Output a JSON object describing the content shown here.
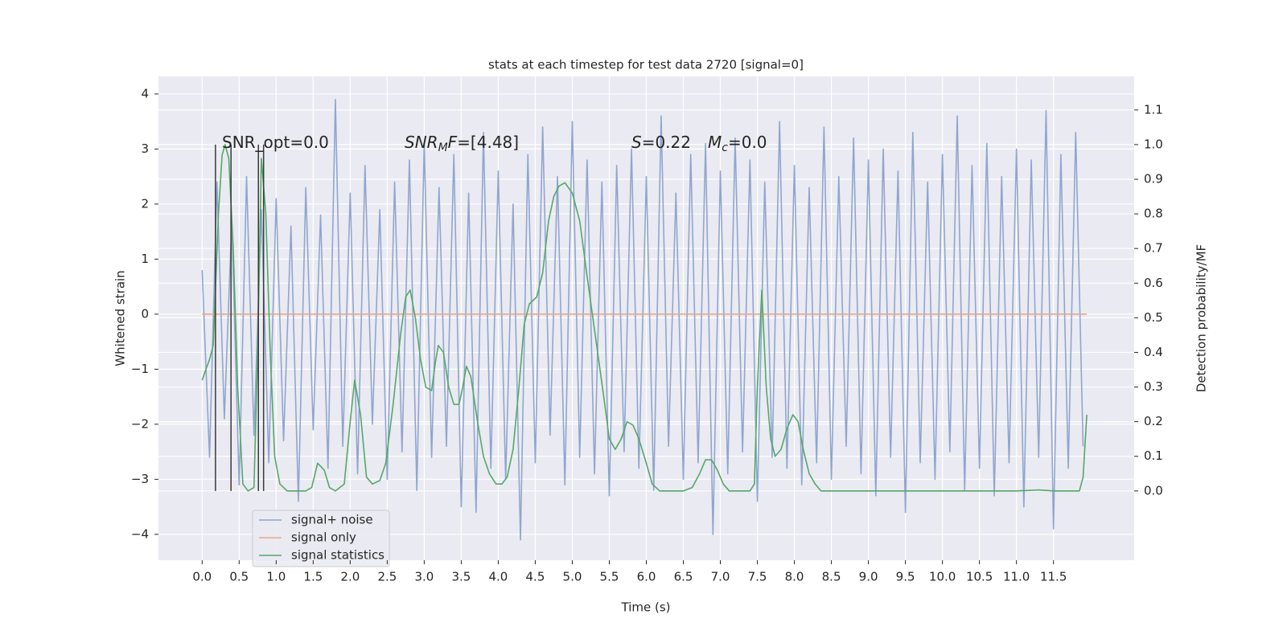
{
  "chart_data": {
    "type": "line",
    "title": "stats at each timestep for test data 2720 [signal=0]",
    "xlabel": "Time (s)",
    "ylabel": "Whitened strain",
    "y2label": "Detection probability/MF",
    "xlim": [
      -0.59,
      12.59
    ],
    "ylim": [
      -4.47,
      4.32
    ],
    "y2lim": [
      -0.2,
      1.197
    ],
    "xticks": [
      {
        "value": 0,
        "label": "0.0"
      },
      0.5,
      {
        "value": 1,
        "label": "1.0"
      },
      1.5,
      {
        "value": 2,
        "label": "2.0"
      },
      2.5,
      {
        "value": 3,
        "label": "3.0"
      },
      3.5,
      {
        "value": 4,
        "label": "4.0"
      },
      4.5,
      {
        "value": 5,
        "label": "5.0"
      },
      5.5,
      {
        "value": 6,
        "label": "6.0"
      },
      6.5,
      {
        "value": 7,
        "label": "7.0"
      },
      7.5,
      {
        "value": 8,
        "label": "8.0"
      },
      8.5,
      {
        "value": 9,
        "label": "9.0"
      },
      9.5,
      {
        "value": 10,
        "label": "10.0"
      },
      10.5,
      {
        "value": 11,
        "label": "11.0"
      },
      11.5
    ],
    "yticks": [
      {
        "value": -4,
        "label": "−4"
      },
      {
        "value": -3,
        "label": "−3"
      },
      {
        "value": -2,
        "label": "−2"
      },
      {
        "value": -1,
        "label": "−1"
      },
      0,
      1,
      2,
      3,
      4
    ],
    "y2ticks": [
      {
        "value": 0,
        "label": "0.0"
      },
      0.1,
      0.2,
      0.3,
      0.4,
      0.5,
      0.6,
      0.7,
      0.8,
      0.9,
      {
        "value": 1,
        "label": "1.0"
      },
      1.1
    ],
    "grid": true,
    "legend": "lower left",
    "annotations": {
      "snr_opt": "SNR_opt=0.0",
      "snr_mf": [
        "SNR",
        "M",
        "F",
        "=[4.48]"
      ],
      "s": [
        "S",
        "=0.22"
      ],
      "mc": [
        "M",
        "c",
        "=0.0"
      ]
    },
    "vlines": {
      "x": [
        0.18,
        0.39,
        0.76,
        0.83
      ],
      "ymin": 0,
      "ymax": 1,
      "color": "#3a3a3a",
      "axis": "y2"
    },
    "series": [
      {
        "name": "signal+ noise",
        "color": "#8fa6cf",
        "axis": "y",
        "x": [
          0,
          0.1,
          0.2,
          0.3,
          0.4,
          0.5,
          0.6,
          0.7,
          0.8,
          0.9,
          1,
          1.1,
          1.2,
          1.3,
          1.4,
          1.5,
          1.6,
          1.7,
          1.8,
          1.9,
          2,
          2.1,
          2.2,
          2.3,
          2.4,
          2.5,
          2.6,
          2.7,
          2.8,
          2.9,
          3,
          3.1,
          3.2,
          3.3,
          3.4,
          3.5,
          3.6,
          3.7,
          3.8,
          3.9,
          4,
          4.1,
          4.2,
          4.3,
          4.4,
          4.5,
          4.6,
          4.7,
          4.8,
          4.9,
          5,
          5.1,
          5.2,
          5.3,
          5.4,
          5.5,
          5.6,
          5.7,
          5.8,
          5.9,
          6,
          6.1,
          6.2,
          6.3,
          6.4,
          6.5,
          6.6,
          6.7,
          6.8,
          6.9,
          7,
          7.1,
          7.2,
          7.3,
          7.4,
          7.5,
          7.6,
          7.7,
          7.8,
          7.9,
          8,
          8.1,
          8.2,
          8.3,
          8.4,
          8.5,
          8.6,
          8.7,
          8.8,
          8.9,
          9,
          9.1,
          9.2,
          9.3,
          9.4,
          9.5,
          9.6,
          9.7,
          9.8,
          9.9,
          10,
          10.1,
          10.2,
          10.3,
          10.4,
          10.5,
          10.6,
          10.7,
          10.8,
          10.9,
          11,
          11.1,
          11.2,
          11.3,
          11.4,
          11.5,
          11.6,
          11.7,
          11.8,
          11.9
        ],
        "values": [
          0.8,
          -2.6,
          2.4,
          -1.9,
          1.7,
          -3.1,
          2.5,
          -2.2,
          1.9,
          -2.7,
          2.1,
          -2.3,
          1.6,
          -3.4,
          2.3,
          -2.1,
          1.8,
          -2.8,
          3.9,
          -2.4,
          2.2,
          -2.9,
          2.7,
          -2.0,
          1.9,
          -3.0,
          2.4,
          -2.5,
          2.8,
          -3.2,
          3.1,
          -2.6,
          2.3,
          -2.4,
          2.9,
          -3.5,
          2.2,
          -3.6,
          3.3,
          -2.8,
          2.6,
          -3.0,
          2.0,
          -4.1,
          2.9,
          -2.7,
          3.4,
          -2.2,
          2.5,
          -3.1,
          3.5,
          -2.6,
          2.8,
          -2.9,
          2.4,
          -3.3,
          2.7,
          -2.5,
          3.0,
          -2.8,
          2.5,
          -3.2,
          3.6,
          -2.4,
          2.2,
          -3.0,
          2.9,
          -2.7,
          3.1,
          -4.0,
          2.6,
          -2.9,
          3.2,
          -2.5,
          2.8,
          -3.4,
          2.4,
          -2.6,
          3.5,
          -2.8,
          2.7,
          -3.1,
          2.3,
          -2.7,
          3.4,
          -3.0,
          2.5,
          -2.4,
          3.2,
          -2.9,
          2.8,
          -3.3,
          3.0,
          -2.6,
          2.6,
          -3.6,
          3.3,
          -2.7,
          2.4,
          -3.0,
          2.9,
          -2.5,
          3.6,
          -3.2,
          2.7,
          -2.8,
          3.1,
          -3.3,
          2.5,
          -2.7,
          3.0,
          -3.5,
          2.8,
          -2.6,
          3.7,
          -3.9,
          2.9,
          -2.8,
          3.3,
          -2.4
        ]
      },
      {
        "name": "signal only",
        "color": "#e6a98a",
        "axis": "y",
        "x": [
          0,
          11.95
        ],
        "values": [
          0,
          0
        ]
      },
      {
        "name": "signal statistics",
        "color": "#55a868",
        "axis": "y2",
        "x": [
          0,
          0.1,
          0.15,
          0.22,
          0.27,
          0.31,
          0.36,
          0.42,
          0.48,
          0.55,
          0.62,
          0.7,
          0.75,
          0.8,
          0.86,
          0.92,
          0.98,
          1.05,
          1.15,
          1.4,
          1.48,
          1.56,
          1.65,
          1.72,
          1.8,
          1.92,
          2,
          2.06,
          2.14,
          2.22,
          2.3,
          2.4,
          2.48,
          2.58,
          2.68,
          2.75,
          2.81,
          2.88,
          2.95,
          3.02,
          3.1,
          3.15,
          3.19,
          3.26,
          3.33,
          3.4,
          3.47,
          3.52,
          3.57,
          3.63,
          3.72,
          3.8,
          3.88,
          3.97,
          4.05,
          4.12,
          4.2,
          4.28,
          4.35,
          4.42,
          4.52,
          4.6,
          4.68,
          4.75,
          4.82,
          4.9,
          5,
          5.1,
          5.2,
          5.31,
          5.42,
          5.5,
          5.58,
          5.66,
          5.74,
          5.82,
          5.9,
          6,
          6.08,
          6.18,
          6.5,
          6.62,
          6.72,
          6.8,
          6.88,
          6.96,
          7.04,
          7.12,
          7.4,
          7.46,
          7.5,
          7.56,
          7.62,
          7.68,
          7.74,
          7.82,
          7.9,
          7.98,
          8.05,
          8.12,
          8.2,
          8.28,
          8.36,
          9,
          10,
          10.5,
          11,
          11.3,
          11.5,
          11.85,
          11.9,
          11.95
        ],
        "values": [
          0.32,
          0.38,
          0.42,
          0.8,
          0.97,
          1.0,
          0.96,
          0.7,
          0.3,
          0.02,
          0.0,
          0.01,
          0.4,
          0.96,
          0.8,
          0.4,
          0.1,
          0.02,
          0.0,
          0.0,
          0.01,
          0.08,
          0.06,
          0.01,
          0.0,
          0.02,
          0.2,
          0.32,
          0.22,
          0.04,
          0.02,
          0.03,
          0.08,
          0.25,
          0.45,
          0.56,
          0.58,
          0.5,
          0.38,
          0.3,
          0.29,
          0.37,
          0.42,
          0.4,
          0.3,
          0.25,
          0.25,
          0.3,
          0.36,
          0.33,
          0.2,
          0.1,
          0.05,
          0.02,
          0.02,
          0.04,
          0.12,
          0.3,
          0.48,
          0.54,
          0.56,
          0.63,
          0.78,
          0.85,
          0.88,
          0.89,
          0.86,
          0.78,
          0.62,
          0.45,
          0.28,
          0.15,
          0.12,
          0.15,
          0.2,
          0.19,
          0.15,
          0.08,
          0.02,
          0.0,
          0.0,
          0.01,
          0.05,
          0.09,
          0.09,
          0.06,
          0.02,
          0.0,
          0.0,
          0.02,
          0.3,
          0.58,
          0.3,
          0.15,
          0.1,
          0.12,
          0.18,
          0.22,
          0.2,
          0.12,
          0.05,
          0.02,
          0.0,
          0.0,
          0.0,
          0.0,
          0.0,
          0.003,
          0.0,
          0.0,
          0.04,
          0.22
        ]
      }
    ]
  }
}
